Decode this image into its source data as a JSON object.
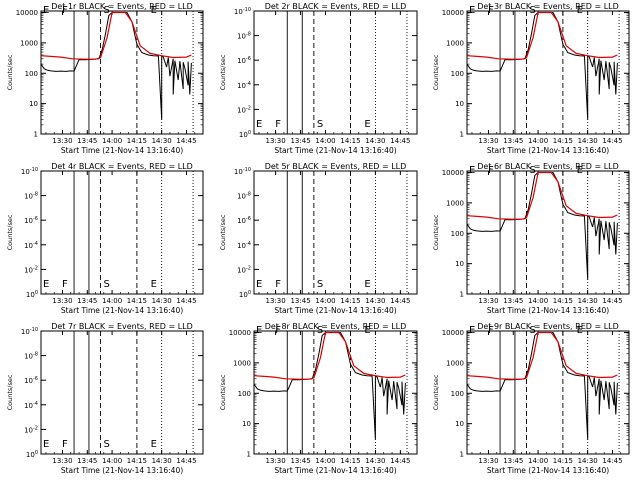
{
  "chart_data": [
    {
      "type": "line",
      "title": "Det 1r BLACK = Events, RED = LLD",
      "has_data": true
    },
    {
      "type": "line",
      "title": "Det 2r BLACK = Events, RED = LLD",
      "has_data": false
    },
    {
      "type": "line",
      "title": "Det 3r BLACK = Events, RED = LLD",
      "has_data": true
    },
    {
      "type": "line",
      "title": "Det 4r BLACK = Events, RED = LLD",
      "has_data": false
    },
    {
      "type": "line",
      "title": "Det 5r BLACK = Events, RED = LLD",
      "has_data": false
    },
    {
      "type": "line",
      "title": "Det 6r BLACK = Events, RED = LLD",
      "has_data": true
    },
    {
      "type": "line",
      "title": "Det 7r BLACK = Events, RED = LLD",
      "has_data": false
    },
    {
      "type": "line",
      "title": "Det 8r BLACK = Events, RED = LLD",
      "has_data": true
    },
    {
      "type": "line",
      "title": "Det 9r BLACK = Events, RED = LLD",
      "has_data": true
    }
  ],
  "common": {
    "xlabel": "Start Time (21-Nov-14 13:16:40)",
    "ylabel": "Counts/sec",
    "xlim": [
      "13:17",
      "14:55"
    ],
    "xticks": [
      "13:30",
      "13:45",
      "14:00",
      "14:15",
      "14:30",
      "14:45"
    ],
    "yticks_log": [
      "1",
      "10",
      "100",
      "1000",
      "10000"
    ],
    "yticks_exp": [
      "10",
      "10",
      "10",
      "10",
      "10",
      "10"
    ],
    "yticks_exp_sup": [
      "0",
      "-2",
      "-4",
      "-6",
      "-8",
      "-10"
    ],
    "markers": {
      "solid": {
        "labels": [
          "F"
        ],
        "times": [
          "13:37",
          "13:46"
        ]
      },
      "dashed": {
        "labels": [
          "S",
          "E"
        ],
        "times": [
          "13:53",
          "14:15"
        ]
      },
      "dotted": {
        "labels": [
          "E"
        ],
        "times": [
          "14:30",
          "14:49"
        ]
      },
      "left_label": "E"
    },
    "colors": {
      "events": "#000000",
      "lld": "#e00000"
    },
    "series": {
      "lld": {
        "name": "LLD",
        "x": [
          "13:17",
          "13:23",
          "13:29",
          "13:36",
          "13:44",
          "13:50",
          "13:53",
          "13:57",
          "14:00",
          "14:08",
          "14:12",
          "14:17",
          "14:23",
          "14:30",
          "14:37",
          "14:45",
          "14:48"
        ],
        "y": [
          380,
          360,
          340,
          300,
          290,
          290,
          320,
          1500,
          10000,
          10000,
          5000,
          800,
          450,
          380,
          330,
          340,
          400
        ]
      },
      "events": {
        "name": "Events",
        "x": [
          "13:17",
          "13:19",
          "13:21",
          "13:23",
          "13:26",
          "13:29",
          "13:32",
          "13:35",
          "13:37",
          "13:40",
          "13:44",
          "13:48",
          "13:52",
          "13:54",
          "13:56",
          "13:58",
          "14:00",
          "14:09",
          "14:12",
          "14:15",
          "14:18",
          "14:22",
          "14:25",
          "14:28",
          "14:30",
          "14:30",
          "14:31",
          "14:33",
          "14:34",
          "14:35",
          "14:37",
          "14:37",
          "14:38",
          "14:40",
          "14:41",
          "14:43",
          "14:43",
          "14:44",
          "14:46",
          "14:46",
          "14:47",
          "14:48"
        ],
        "y": [
          200,
          140,
          125,
          120,
          115,
          118,
          115,
          120,
          118,
          280,
          280,
          285,
          300,
          600,
          2000,
          8000,
          10000,
          10000,
          5000,
          900,
          480,
          400,
          380,
          370,
          3,
          370,
          340,
          160,
          330,
          80,
          300,
          20,
          260,
          60,
          250,
          30,
          230,
          150,
          40,
          240,
          20,
          220
        ]
      }
    }
  }
}
